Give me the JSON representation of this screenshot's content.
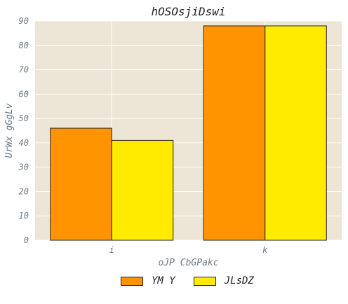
{
  "chart_data": {
    "type": "bar",
    "title": "hOSOsjiDswi",
    "xlabel": "oJP CbGPakc",
    "ylabel": "UrWx gGgLv",
    "categories": [
      "i",
      "k"
    ],
    "series": [
      {
        "name": "YM Y",
        "values": [
          46,
          88
        ],
        "color": "#ff9400"
      },
      {
        "name": "JLsDZ",
        "values": [
          41,
          88
        ],
        "color": "#ffeb00"
      }
    ],
    "ylim": [
      0,
      90
    ],
    "yticks": [
      0,
      10,
      20,
      30,
      40,
      50,
      60,
      70,
      80,
      90
    ],
    "grid": true,
    "legend": "bottom-center"
  },
  "style": {
    "plot_bg": "#ede5d5",
    "grid": "#ffffff",
    "text": "#6a7a88",
    "title": "#222222",
    "bar_edge": "#222222"
  }
}
